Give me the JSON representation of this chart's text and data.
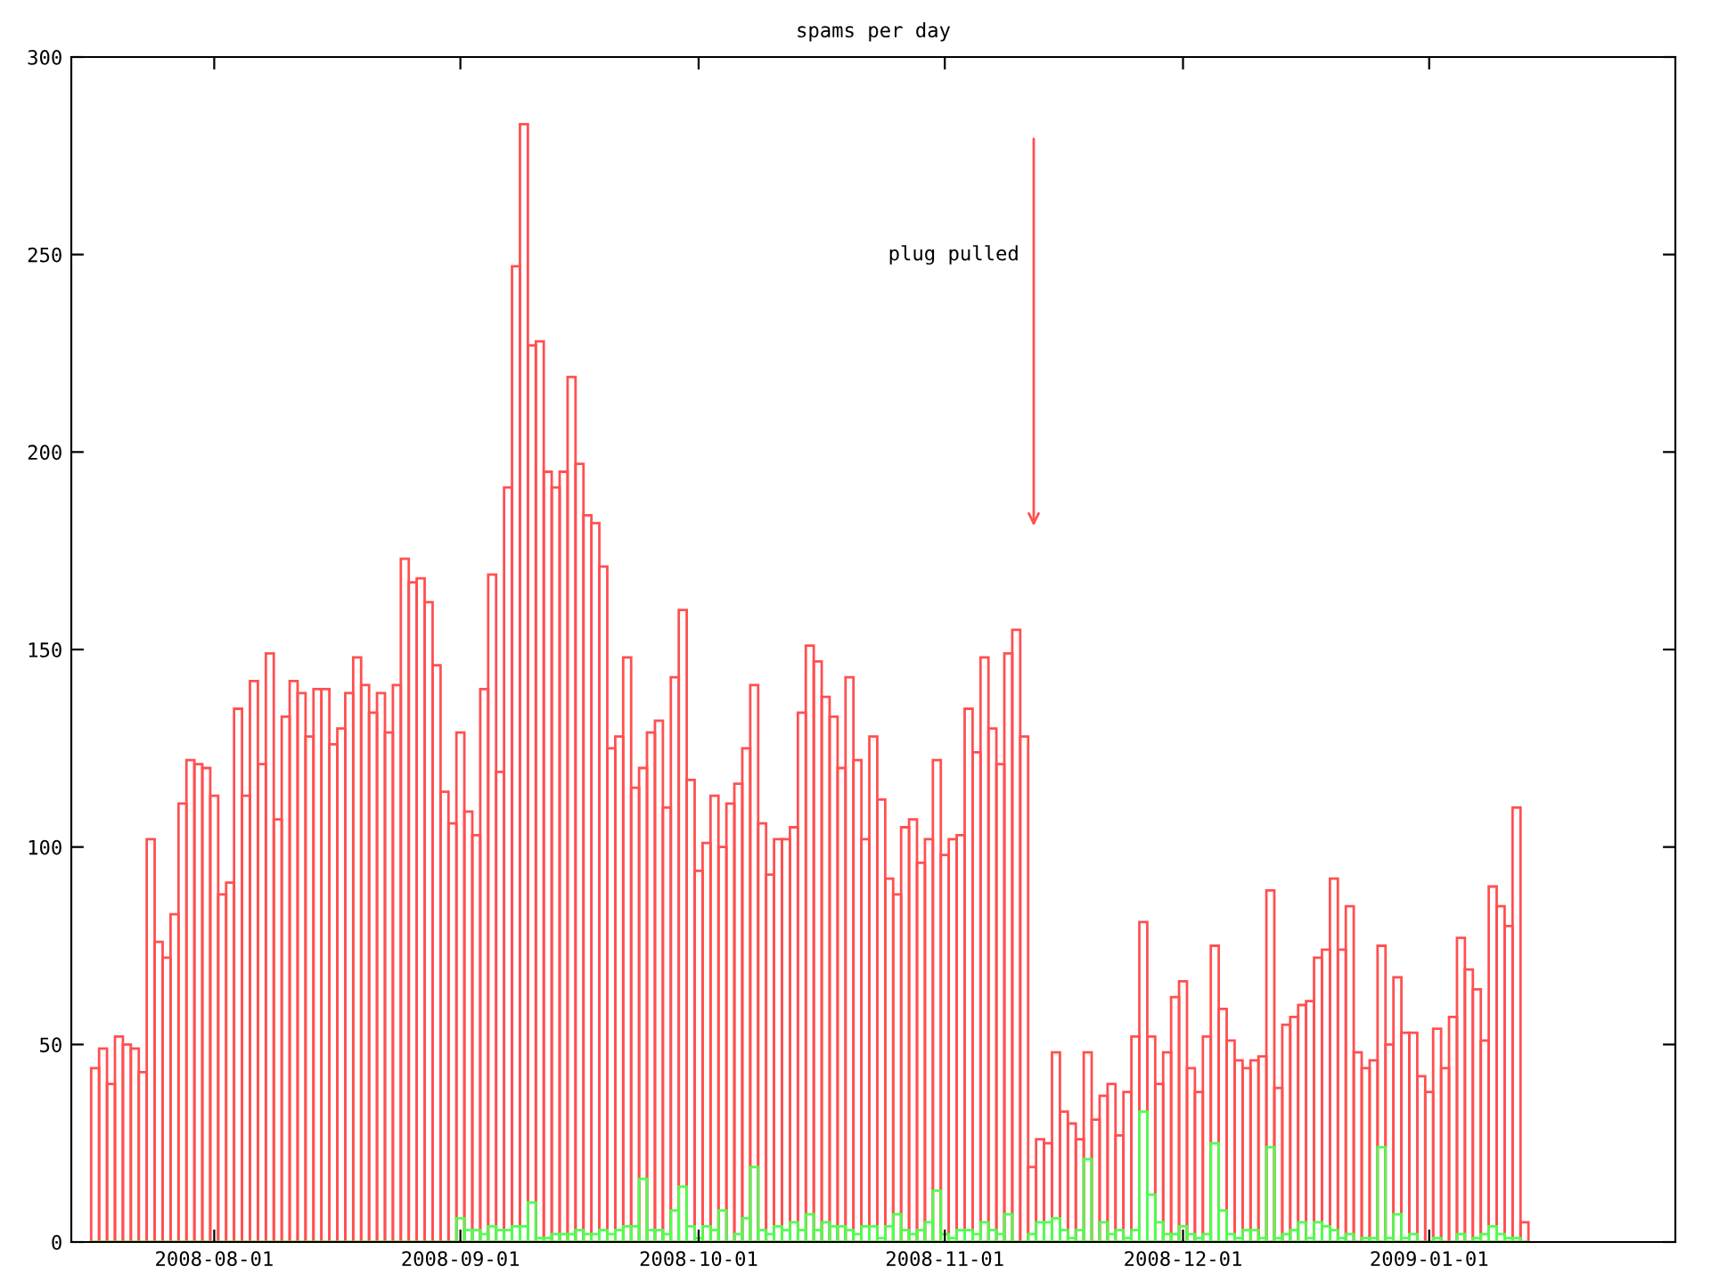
{
  "chart_data": {
    "type": "bar",
    "title": "spams per day",
    "x": [
      "2008-07-17",
      "2008-07-18",
      "2008-07-19",
      "2008-07-20",
      "2008-07-21",
      "2008-07-22",
      "2008-07-23",
      "2008-07-24",
      "2008-07-25",
      "2008-07-26",
      "2008-07-27",
      "2008-07-28",
      "2008-07-29",
      "2008-07-30",
      "2008-07-31",
      "2008-08-01",
      "2008-08-02",
      "2008-08-03",
      "2008-08-04",
      "2008-08-05",
      "2008-08-06",
      "2008-08-07",
      "2008-08-08",
      "2008-08-09",
      "2008-08-10",
      "2008-08-11",
      "2008-08-12",
      "2008-08-13",
      "2008-08-14",
      "2008-08-15",
      "2008-08-16",
      "2008-08-17",
      "2008-08-18",
      "2008-08-19",
      "2008-08-20",
      "2008-08-21",
      "2008-08-22",
      "2008-08-23",
      "2008-08-24",
      "2008-08-25",
      "2008-08-26",
      "2008-08-27",
      "2008-08-28",
      "2008-08-29",
      "2008-08-30",
      "2008-08-31",
      "2008-09-01",
      "2008-09-02",
      "2008-09-03",
      "2008-09-04",
      "2008-09-05",
      "2008-09-06",
      "2008-09-07",
      "2008-09-08",
      "2008-09-09",
      "2008-09-10",
      "2008-09-11",
      "2008-09-12",
      "2008-09-13",
      "2008-09-14",
      "2008-09-15",
      "2008-09-16",
      "2008-09-17",
      "2008-09-18",
      "2008-09-19",
      "2008-09-20",
      "2008-09-21",
      "2008-09-22",
      "2008-09-23",
      "2008-09-24",
      "2008-09-25",
      "2008-09-26",
      "2008-09-27",
      "2008-09-28",
      "2008-09-29",
      "2008-09-30",
      "2008-10-01",
      "2008-10-02",
      "2008-10-03",
      "2008-10-04",
      "2008-10-05",
      "2008-10-06",
      "2008-10-07",
      "2008-10-08",
      "2008-10-09",
      "2008-10-10",
      "2008-10-11",
      "2008-10-12",
      "2008-10-13",
      "2008-10-14",
      "2008-10-15",
      "2008-10-16",
      "2008-10-17",
      "2008-10-18",
      "2008-10-19",
      "2008-10-20",
      "2008-10-21",
      "2008-10-22",
      "2008-10-23",
      "2008-10-24",
      "2008-10-25",
      "2008-10-26",
      "2008-10-27",
      "2008-10-28",
      "2008-10-29",
      "2008-10-30",
      "2008-10-31",
      "2008-11-01",
      "2008-11-02",
      "2008-11-03",
      "2008-11-04",
      "2008-11-05",
      "2008-11-06",
      "2008-11-07",
      "2008-11-08",
      "2008-11-09",
      "2008-11-10",
      "2008-11-11",
      "2008-11-12",
      "2008-11-13",
      "2008-11-14",
      "2008-11-15",
      "2008-11-16",
      "2008-11-17",
      "2008-11-18",
      "2008-11-19",
      "2008-11-20",
      "2008-11-21",
      "2008-11-22",
      "2008-11-23",
      "2008-11-24",
      "2008-11-25",
      "2008-11-26",
      "2008-11-27",
      "2008-11-28",
      "2008-11-29",
      "2008-11-30",
      "2008-12-01",
      "2008-12-02",
      "2008-12-03",
      "2008-12-04",
      "2008-12-05",
      "2008-12-06",
      "2008-12-07",
      "2008-12-08",
      "2008-12-09",
      "2008-12-10",
      "2008-12-11",
      "2008-12-12",
      "2008-12-13",
      "2008-12-14",
      "2008-12-15",
      "2008-12-16",
      "2008-12-17",
      "2008-12-18",
      "2008-12-19",
      "2008-12-20",
      "2008-12-21",
      "2008-12-22",
      "2008-12-23",
      "2008-12-24",
      "2008-12-25",
      "2008-12-26",
      "2008-12-27",
      "2008-12-28",
      "2008-12-29",
      "2008-12-30",
      "2008-12-31",
      "2009-01-01",
      "2009-01-02",
      "2009-01-03",
      "2009-01-04",
      "2009-01-05",
      "2009-01-06",
      "2009-01-07",
      "2009-01-08",
      "2009-01-09",
      "2009-01-10",
      "2009-01-11",
      "2009-01-12",
      "2009-01-13"
    ],
    "series": [
      {
        "color": "#ff5050",
        "values": [
          44,
          49,
          40,
          52,
          50,
          49,
          43,
          102,
          76,
          72,
          83,
          111,
          122,
          121,
          120,
          113,
          88,
          91,
          135,
          113,
          142,
          121,
          149,
          107,
          133,
          142,
          139,
          128,
          140,
          140,
          126,
          130,
          139,
          148,
          141,
          134,
          139,
          129,
          141,
          173,
          167,
          168,
          162,
          146,
          114,
          106,
          129,
          109,
          103,
          140,
          169,
          119,
          191,
          247,
          283,
          227,
          228,
          195,
          191,
          195,
          219,
          197,
          184,
          182,
          171,
          125,
          128,
          148,
          115,
          120,
          129,
          132,
          110,
          143,
          160,
          117,
          94,
          101,
          113,
          100,
          111,
          116,
          125,
          141,
          106,
          93,
          102,
          102,
          105,
          134,
          151,
          147,
          138,
          133,
          120,
          143,
          122,
          102,
          128,
          112,
          92,
          88,
          105,
          107,
          96,
          102,
          122,
          98,
          102,
          103,
          135,
          124,
          148,
          130,
          121,
          149,
          155,
          128,
          19,
          26,
          25,
          48,
          33,
          30,
          26,
          48,
          31,
          37,
          40,
          27,
          38,
          52,
          81,
          52,
          40,
          48,
          62,
          66,
          44,
          38,
          52,
          75,
          59,
          51,
          46,
          44,
          46,
          47,
          89,
          39,
          55,
          57,
          60,
          61,
          72,
          74,
          92,
          74,
          85,
          48,
          44,
          46,
          75,
          50,
          67,
          53,
          53,
          42,
          38,
          54,
          44,
          57,
          77,
          69,
          64,
          51,
          90,
          85,
          80,
          110,
          5
        ]
      },
      {
        "color": "#50ff50",
        "values": [
          0,
          0,
          0,
          0,
          0,
          0,
          0,
          0,
          0,
          0,
          0,
          0,
          0,
          0,
          0,
          0,
          0,
          0,
          0,
          0,
          0,
          0,
          0,
          0,
          0,
          0,
          0,
          0,
          0,
          0,
          0,
          0,
          0,
          0,
          0,
          0,
          0,
          0,
          0,
          0,
          0,
          0,
          0,
          0,
          0,
          0,
          6,
          3,
          3,
          2,
          4,
          3,
          3,
          4,
          4,
          10,
          1,
          1,
          2,
          2,
          2,
          3,
          2,
          2,
          3,
          2,
          3,
          4,
          4,
          16,
          3,
          3,
          2,
          8,
          14,
          4,
          1,
          4,
          3,
          8,
          0,
          2,
          6,
          19,
          3,
          2,
          4,
          3,
          5,
          3,
          7,
          3,
          5,
          4,
          4,
          3,
          2,
          4,
          4,
          1,
          4,
          7,
          3,
          2,
          3,
          5,
          13,
          2,
          1,
          3,
          3,
          2,
          5,
          3,
          2,
          7,
          0,
          0,
          2,
          5,
          5,
          6,
          3,
          1,
          3,
          21,
          0,
          5,
          2,
          3,
          1,
          3,
          33,
          12,
          5,
          2,
          2,
          4,
          2,
          1,
          2,
          25,
          8,
          2,
          1,
          3,
          3,
          1,
          24,
          1,
          2,
          3,
          5,
          1,
          5,
          4,
          3,
          1,
          2,
          0,
          1,
          1,
          24,
          1,
          7,
          1,
          2,
          0,
          0,
          1,
          0,
          0,
          2,
          0,
          1,
          2,
          4,
          2,
          1,
          1,
          0
        ]
      }
    ],
    "annotations": [
      "plug pulled"
    ],
    "xlim": [
      "2008-07-14",
      "2009-02-01"
    ],
    "xticks": [
      "2008-08-01",
      "2008-09-01",
      "2008-10-01",
      "2008-11-01",
      "2008-12-01",
      "2009-01-01"
    ],
    "ylim": [
      0,
      300
    ],
    "yticks": [
      0,
      50,
      100,
      150,
      200,
      250,
      300
    ],
    "grid": false,
    "legend": false
  }
}
